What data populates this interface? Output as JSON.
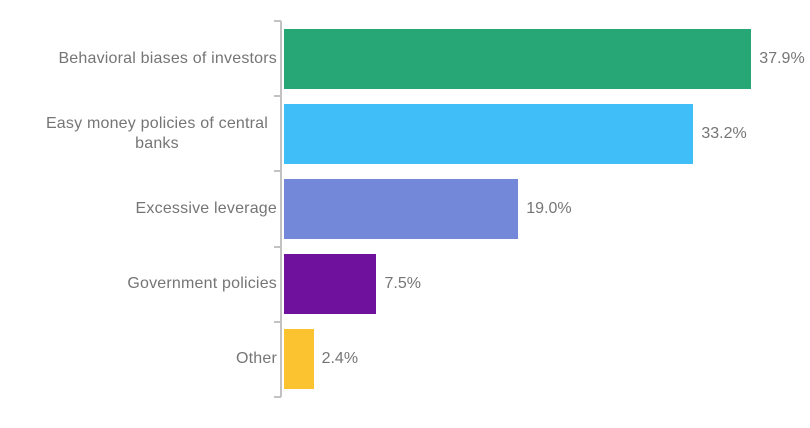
{
  "chart": {
    "background": "#ffffff",
    "text_color": "#757575",
    "axis_color": "#c2c2c2"
  },
  "chart_data": {
    "type": "bar",
    "orientation": "horizontal",
    "title": "",
    "categories": [
      "Behavioral biases of investors",
      "Easy money policies of central banks",
      "Excessive leverage",
      "Government policies",
      "Other"
    ],
    "values": [
      37.9,
      33.2,
      19.0,
      7.5,
      2.4
    ],
    "value_labels": [
      "37.9%",
      "33.2%",
      "19.0%",
      "7.5%",
      "2.4%"
    ],
    "bar_colors": [
      "#27a775",
      "#3fbef7",
      "#7388d9",
      "#70119d",
      "#fbc32f"
    ],
    "unit": "%",
    "value_axis_range": [
      0,
      40
    ],
    "grid": false,
    "legend": "none"
  }
}
